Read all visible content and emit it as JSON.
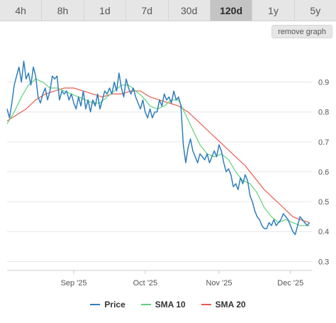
{
  "tabs": [
    {
      "label": "4h",
      "active": false
    },
    {
      "label": "8h",
      "active": false
    },
    {
      "label": "1d",
      "active": false
    },
    {
      "label": "7d",
      "active": false
    },
    {
      "label": "30d",
      "active": false
    },
    {
      "label": "120d",
      "active": true
    },
    {
      "label": "1y",
      "active": false
    },
    {
      "label": "5y",
      "active": false
    }
  ],
  "remove_graph_label": "remove graph",
  "colors": {
    "price": "#2f7ebc",
    "sma10": "#5fd17a",
    "sma20": "#e85a4f",
    "grid": "#e6e6e6",
    "axis_text": "#555555"
  },
  "chart_data": {
    "type": "line",
    "title": "",
    "xlabel": "",
    "ylabel": "",
    "x_ticks": [
      "Sep '25",
      "Oct '25",
      "Nov '25",
      "Dec '25"
    ],
    "y_ticks": [
      0.3,
      0.4,
      0.5,
      0.6,
      0.7,
      0.8,
      0.9
    ],
    "ylim": [
      0.27,
      1.02
    ],
    "grid": true,
    "legend_position": "bottom",
    "series": [
      {
        "name": "Price",
        "points": [
          [
            "2025-08-04",
            0.81
          ],
          [
            "2025-08-05",
            0.78
          ],
          [
            "2025-08-06",
            0.83
          ],
          [
            "2025-08-07",
            0.89
          ],
          [
            "2025-08-08",
            0.92
          ],
          [
            "2025-08-09",
            0.95
          ],
          [
            "2025-08-10",
            0.9
          ],
          [
            "2025-08-11",
            0.97
          ],
          [
            "2025-08-12",
            0.91
          ],
          [
            "2025-08-13",
            0.93
          ],
          [
            "2025-08-14",
            0.89
          ],
          [
            "2025-08-15",
            0.95
          ],
          [
            "2025-08-16",
            0.92
          ],
          [
            "2025-08-17",
            0.85
          ],
          [
            "2025-08-18",
            0.83
          ],
          [
            "2025-08-19",
            0.86
          ],
          [
            "2025-08-20",
            0.88
          ],
          [
            "2025-08-21",
            0.84
          ],
          [
            "2025-08-22",
            0.87
          ],
          [
            "2025-08-23",
            0.92
          ],
          [
            "2025-08-24",
            0.91
          ],
          [
            "2025-08-25",
            0.92
          ],
          [
            "2025-08-26",
            0.84
          ],
          [
            "2025-08-27",
            0.87
          ],
          [
            "2025-08-28",
            0.86
          ],
          [
            "2025-08-29",
            0.87
          ],
          [
            "2025-08-30",
            0.84
          ],
          [
            "2025-08-31",
            0.86
          ],
          [
            "2025-09-01",
            0.83
          ],
          [
            "2025-09-02",
            0.81
          ],
          [
            "2025-09-03",
            0.85
          ],
          [
            "2025-09-04",
            0.82
          ],
          [
            "2025-09-05",
            0.87
          ],
          [
            "2025-09-06",
            0.81
          ],
          [
            "2025-09-07",
            0.84
          ],
          [
            "2025-09-08",
            0.8
          ],
          [
            "2025-09-09",
            0.84
          ],
          [
            "2025-09-10",
            0.82
          ],
          [
            "2025-09-11",
            0.86
          ],
          [
            "2025-09-12",
            0.81
          ],
          [
            "2025-09-13",
            0.84
          ],
          [
            "2025-09-14",
            0.87
          ],
          [
            "2025-09-15",
            0.86
          ],
          [
            "2025-09-16",
            0.88
          ],
          [
            "2025-09-17",
            0.86
          ],
          [
            "2025-09-18",
            0.9
          ],
          [
            "2025-09-19",
            0.87
          ],
          [
            "2025-09-20",
            0.93
          ],
          [
            "2025-09-21",
            0.88
          ],
          [
            "2025-09-22",
            0.85
          ],
          [
            "2025-09-23",
            0.91
          ],
          [
            "2025-09-24",
            0.88
          ],
          [
            "2025-09-25",
            0.86
          ],
          [
            "2025-09-26",
            0.88
          ],
          [
            "2025-09-27",
            0.85
          ],
          [
            "2025-09-28",
            0.83
          ],
          [
            "2025-09-29",
            0.81
          ],
          [
            "2025-09-30",
            0.84
          ],
          [
            "2025-10-01",
            0.8
          ],
          [
            "2025-10-02",
            0.78
          ],
          [
            "2025-10-03",
            0.81
          ],
          [
            "2025-10-04",
            0.78
          ],
          [
            "2025-10-05",
            0.8
          ],
          [
            "2025-10-06",
            0.8
          ],
          [
            "2025-10-07",
            0.84
          ],
          [
            "2025-10-08",
            0.82
          ],
          [
            "2025-10-09",
            0.86
          ],
          [
            "2025-10-10",
            0.84
          ],
          [
            "2025-10-11",
            0.85
          ],
          [
            "2025-10-12",
            0.83
          ],
          [
            "2025-10-13",
            0.87
          ],
          [
            "2025-10-14",
            0.84
          ],
          [
            "2025-10-15",
            0.85
          ],
          [
            "2025-10-16",
            0.82
          ],
          [
            "2025-10-17",
            0.69
          ],
          [
            "2025-10-18",
            0.63
          ],
          [
            "2025-10-19",
            0.68
          ],
          [
            "2025-10-20",
            0.71
          ],
          [
            "2025-10-21",
            0.67
          ],
          [
            "2025-10-22",
            0.65
          ],
          [
            "2025-10-23",
            0.63
          ],
          [
            "2025-10-24",
            0.66
          ],
          [
            "2025-10-25",
            0.65
          ],
          [
            "2025-10-26",
            0.64
          ],
          [
            "2025-10-27",
            0.66
          ],
          [
            "2025-10-28",
            0.63
          ],
          [
            "2025-10-29",
            0.65
          ],
          [
            "2025-10-30",
            0.67
          ],
          [
            "2025-10-31",
            0.65
          ],
          [
            "2025-11-01",
            0.69
          ],
          [
            "2025-11-02",
            0.67
          ],
          [
            "2025-11-03",
            0.63
          ],
          [
            "2025-11-04",
            0.6
          ],
          [
            "2025-11-05",
            0.61
          ],
          [
            "2025-11-06",
            0.59
          ],
          [
            "2025-11-07",
            0.55
          ],
          [
            "2025-11-08",
            0.56
          ],
          [
            "2025-11-09",
            0.54
          ],
          [
            "2025-11-10",
            0.58
          ],
          [
            "2025-11-11",
            0.56
          ],
          [
            "2025-11-12",
            0.59
          ],
          [
            "2025-11-13",
            0.57
          ],
          [
            "2025-11-14",
            0.52
          ],
          [
            "2025-11-15",
            0.5
          ],
          [
            "2025-11-16",
            0.47
          ],
          [
            "2025-11-17",
            0.45
          ],
          [
            "2025-11-18",
            0.44
          ],
          [
            "2025-11-19",
            0.42
          ],
          [
            "2025-11-20",
            0.41
          ],
          [
            "2025-11-21",
            0.41
          ],
          [
            "2025-11-22",
            0.43
          ],
          [
            "2025-11-23",
            0.42
          ],
          [
            "2025-11-24",
            0.44
          ],
          [
            "2025-11-25",
            0.42
          ],
          [
            "2025-11-26",
            0.43
          ],
          [
            "2025-11-27",
            0.44
          ],
          [
            "2025-11-28",
            0.46
          ],
          [
            "2025-11-29",
            0.45
          ],
          [
            "2025-11-30",
            0.44
          ],
          [
            "2025-12-01",
            0.42
          ],
          [
            "2025-12-02",
            0.4
          ],
          [
            "2025-12-03",
            0.39
          ],
          [
            "2025-12-04",
            0.42
          ],
          [
            "2025-12-05",
            0.45
          ],
          [
            "2025-12-06",
            0.44
          ],
          [
            "2025-12-07",
            0.43
          ],
          [
            "2025-12-08",
            0.42
          ],
          [
            "2025-12-09",
            0.43
          ]
        ]
      },
      {
        "name": "SMA 10",
        "points": [
          [
            "2025-08-04",
            0.76
          ],
          [
            "2025-08-07",
            0.8
          ],
          [
            "2025-08-10",
            0.85
          ],
          [
            "2025-08-13",
            0.89
          ],
          [
            "2025-08-16",
            0.91
          ],
          [
            "2025-08-19",
            0.9
          ],
          [
            "2025-08-22",
            0.88
          ],
          [
            "2025-08-25",
            0.88
          ],
          [
            "2025-08-28",
            0.87
          ],
          [
            "2025-08-31",
            0.86
          ],
          [
            "2025-09-03",
            0.85
          ],
          [
            "2025-09-06",
            0.84
          ],
          [
            "2025-09-09",
            0.83
          ],
          [
            "2025-09-12",
            0.83
          ],
          [
            "2025-09-15",
            0.85
          ],
          [
            "2025-09-18",
            0.87
          ],
          [
            "2025-09-21",
            0.89
          ],
          [
            "2025-09-24",
            0.89
          ],
          [
            "2025-09-27",
            0.87
          ],
          [
            "2025-09-30",
            0.85
          ],
          [
            "2025-10-03",
            0.82
          ],
          [
            "2025-10-06",
            0.81
          ],
          [
            "2025-10-09",
            0.82
          ],
          [
            "2025-10-12",
            0.84
          ],
          [
            "2025-10-15",
            0.84
          ],
          [
            "2025-10-18",
            0.79
          ],
          [
            "2025-10-21",
            0.74
          ],
          [
            "2025-10-24",
            0.69
          ],
          [
            "2025-10-27",
            0.66
          ],
          [
            "2025-10-30",
            0.65
          ],
          [
            "2025-11-02",
            0.66
          ],
          [
            "2025-11-05",
            0.64
          ],
          [
            "2025-11-08",
            0.6
          ],
          [
            "2025-11-11",
            0.57
          ],
          [
            "2025-11-14",
            0.56
          ],
          [
            "2025-11-17",
            0.53
          ],
          [
            "2025-11-20",
            0.48
          ],
          [
            "2025-11-23",
            0.45
          ],
          [
            "2025-11-26",
            0.43
          ],
          [
            "2025-11-29",
            0.44
          ],
          [
            "2025-12-02",
            0.43
          ],
          [
            "2025-12-05",
            0.42
          ],
          [
            "2025-12-09",
            0.42
          ]
        ]
      },
      {
        "name": "SMA 20",
        "points": [
          [
            "2025-08-04",
            0.77
          ],
          [
            "2025-08-08",
            0.79
          ],
          [
            "2025-08-12",
            0.81
          ],
          [
            "2025-08-16",
            0.84
          ],
          [
            "2025-08-20",
            0.86
          ],
          [
            "2025-08-24",
            0.87
          ],
          [
            "2025-08-28",
            0.88
          ],
          [
            "2025-09-01",
            0.88
          ],
          [
            "2025-09-05",
            0.87
          ],
          [
            "2025-09-09",
            0.86
          ],
          [
            "2025-09-13",
            0.85
          ],
          [
            "2025-09-17",
            0.86
          ],
          [
            "2025-09-21",
            0.86
          ],
          [
            "2025-09-25",
            0.87
          ],
          [
            "2025-09-29",
            0.87
          ],
          [
            "2025-10-03",
            0.85
          ],
          [
            "2025-10-07",
            0.84
          ],
          [
            "2025-10-11",
            0.83
          ],
          [
            "2025-10-15",
            0.82
          ],
          [
            "2025-10-19",
            0.8
          ],
          [
            "2025-10-23",
            0.77
          ],
          [
            "2025-10-27",
            0.74
          ],
          [
            "2025-10-31",
            0.71
          ],
          [
            "2025-11-04",
            0.68
          ],
          [
            "2025-11-08",
            0.65
          ],
          [
            "2025-11-12",
            0.62
          ],
          [
            "2025-11-16",
            0.58
          ],
          [
            "2025-11-20",
            0.54
          ],
          [
            "2025-11-24",
            0.51
          ],
          [
            "2025-11-28",
            0.48
          ],
          [
            "2025-12-02",
            0.45
          ],
          [
            "2025-12-05",
            0.44
          ],
          [
            "2025-12-09",
            0.43
          ]
        ]
      }
    ]
  }
}
